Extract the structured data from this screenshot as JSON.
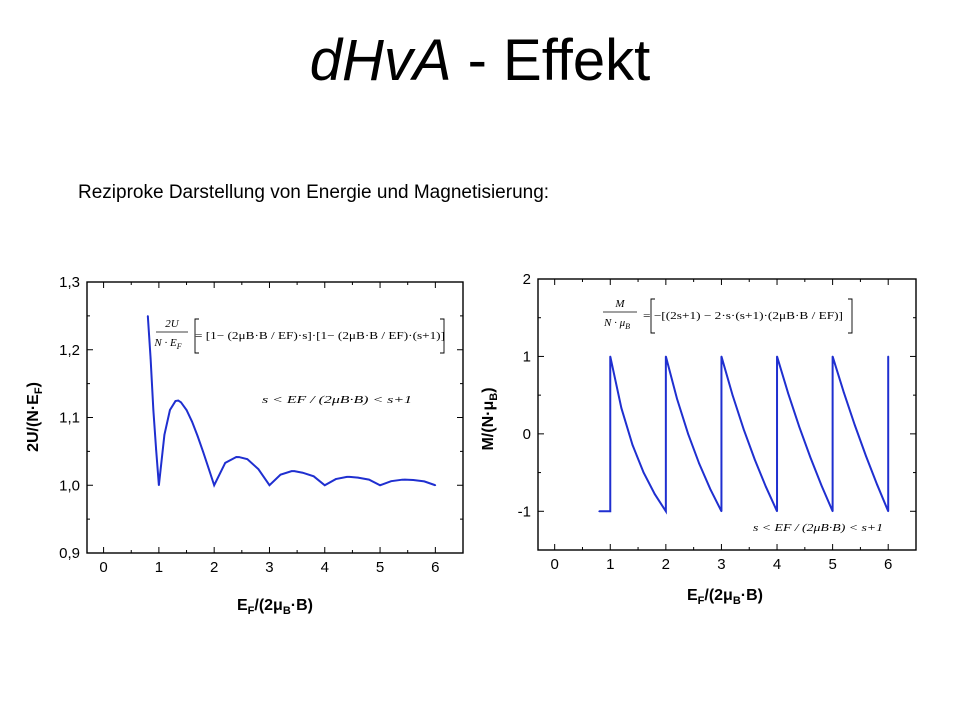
{
  "slide": {
    "title_italic": "dHvA",
    "title_rest": " - Effekt",
    "subtitle": "Reziproke Darstellung von Energie und Magnetisierung:"
  },
  "colors": {
    "curve": "#1f2fd0",
    "axis": "#000000",
    "background": "#ffffff"
  },
  "chart_data": [
    {
      "type": "line",
      "name": "energy",
      "xlabel": {
        "main": "E",
        "sub": "F",
        "rest": "/(2",
        "mu": "μ",
        "sub2": "B",
        "end": "·B)"
      },
      "ylabel": {
        "main": "2U/(N·E",
        "sub": "F",
        "end": ")"
      },
      "xlim": [
        -0.3,
        6.5
      ],
      "ylim": [
        0.9,
        1.3
      ],
      "x_ticks": [
        "0",
        "1",
        "2",
        "3",
        "4",
        "5",
        "6"
      ],
      "y_ticks": [
        "0,9",
        "1,0",
        "1,1",
        "1,2",
        "1,3"
      ],
      "annotations": {
        "formula_lhs_num": "2U",
        "formula_lhs_den": "N · E",
        "formula_lhs_den_sub": "F",
        "formula_rhs": "= [1− (2μB·B / EF)·s]·[1− (2μB·B / EF)·(s+1)]",
        "condition": "s < EF / (2μB·B) < s+1"
      },
      "x": [
        0.8,
        0.85,
        0.9,
        0.95,
        1.0,
        1.1,
        1.2,
        1.3,
        1.35,
        1.4,
        1.5,
        1.6,
        1.7,
        1.8,
        1.9,
        2.0,
        2.2,
        2.4,
        2.45,
        2.6,
        2.8,
        3.0,
        3.2,
        3.4,
        3.45,
        3.6,
        3.8,
        4.0,
        4.2,
        4.4,
        4.45,
        4.6,
        4.8,
        5.0,
        5.2,
        5.4,
        5.45,
        5.6,
        5.8,
        6.0
      ],
      "y": [
        1.25,
        1.1875,
        1.1111,
        1.0526,
        1.0,
        1.0744,
        1.1111,
        1.1243,
        1.125,
        1.1224,
        1.1111,
        1.0938,
        1.0727,
        1.0494,
        1.0249,
        1.0,
        1.0331,
        1.0417,
        1.0416,
        1.0385,
        1.0238,
        1.0,
        1.0156,
        1.0208,
        1.0208,
        1.0185,
        1.0132,
        1.0,
        1.0091,
        1.0124,
        1.0124,
        1.0113,
        1.0083,
        1.0,
        1.006,
        1.0082,
        1.0083,
        1.0077,
        1.0057,
        1.0
      ]
    },
    {
      "type": "line",
      "name": "magnetization",
      "xlabel": {
        "main": "E",
        "sub": "F",
        "rest": "/(2",
        "mu": "μ",
        "sub2": "B",
        "end": "·B)"
      },
      "ylabel": {
        "main": "M/(N·",
        "mu": "μ",
        "sub": "B",
        "end": ")"
      },
      "xlim": [
        -0.3,
        6.5
      ],
      "ylim": [
        -1.5,
        2.0
      ],
      "x_ticks": [
        "0",
        "1",
        "2",
        "3",
        "4",
        "5",
        "6"
      ],
      "y_ticks": [
        "-1",
        "0",
        "1",
        "2"
      ],
      "annotations": {
        "formula_lhs_num": "M",
        "formula_lhs_den": "N · μ",
        "formula_lhs_den_sub": "B",
        "formula_rhs": "= −[(2s+1) − 2·s·(s+1)·(2μB·B / EF)]",
        "condition": "s < EF / (2μB·B) < s+1"
      },
      "x": [
        0.8,
        0.99,
        1.0,
        1.0,
        1.2,
        1.4,
        1.6,
        1.8,
        2.0,
        2.0,
        2.2,
        2.4,
        2.6,
        2.8,
        3.0,
        3.0,
        3.2,
        3.4,
        3.6,
        3.8,
        4.0,
        4.0,
        4.2,
        4.4,
        4.6,
        4.8,
        5.0,
        5.0,
        5.2,
        5.4,
        5.6,
        5.8,
        6.0,
        6.0
      ],
      "y": [
        -1,
        -1,
        -1,
        1,
        0.333,
        -0.143,
        -0.5,
        -0.778,
        -1,
        1,
        0.455,
        0.0,
        -0.385,
        -0.714,
        -1,
        1,
        0.5,
        0.059,
        -0.333,
        -0.684,
        -1,
        1,
        0.524,
        0.091,
        -0.304,
        -0.667,
        -1,
        1,
        0.538,
        0.111,
        -0.286,
        -0.655,
        -1,
        1
      ]
    }
  ]
}
